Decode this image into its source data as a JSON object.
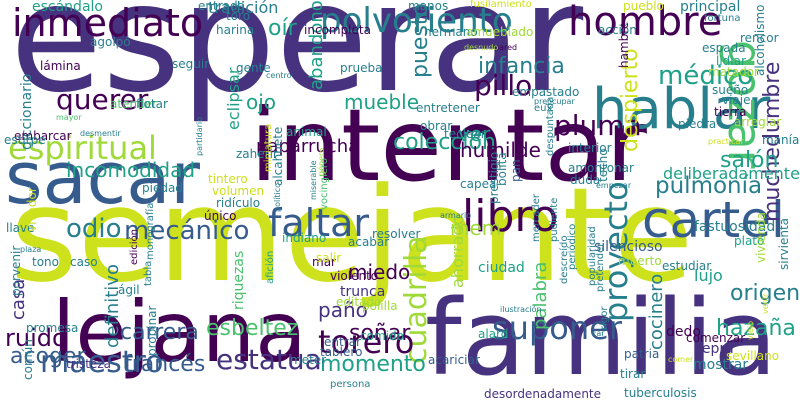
{
  "palette": {
    "background": "#ffffff",
    "deep_purple": "#440154",
    "indigo": "#46327e",
    "blue": "#365c8d",
    "teal": "#277f8e",
    "green_teal": "#1fa187",
    "green": "#4ac16d",
    "lime": "#a0da39",
    "yellow": "#cde11d"
  },
  "words": [
    {
      "id": "esperar",
      "text": "esperar",
      "color": "#46327e"
    },
    {
      "id": "intentar",
      "text": "intentar",
      "color": "#440154"
    },
    {
      "id": "semejante",
      "text": "semejante",
      "color": "#cde11d"
    },
    {
      "id": "familia",
      "text": "familia",
      "color": "#46327e"
    },
    {
      "id": "lejana",
      "text": "lejana",
      "color": "#440154"
    },
    {
      "id": "sacar",
      "text": "sacar",
      "color": "#365c8d"
    },
    {
      "id": "inmediato",
      "text": "inmediato",
      "color": "#440154"
    },
    {
      "id": "polvoriento",
      "text": "polvoriento",
      "color": "#277f8e"
    },
    {
      "id": "hombre",
      "text": "hombre",
      "color": "#440154"
    },
    {
      "id": "hablar",
      "text": "hablar",
      "color": "#277f8e"
    },
    {
      "id": "gozar",
      "text": "gozar",
      "color": "#4ac16d"
    },
    {
      "id": "espiritual",
      "text": "espiritual",
      "color": "#a0da39"
    },
    {
      "id": "faltar",
      "text": "faltar",
      "color": "#365c8d"
    },
    {
      "id": "libro",
      "text": "libro",
      "color": "#440154"
    },
    {
      "id": "cartel",
      "text": "cartel",
      "color": "#365c8d"
    },
    {
      "id": "cuadrilla",
      "text": "cuadrilla",
      "color": "#a0da39"
    },
    {
      "id": "proyecto",
      "text": "proyecto",
      "color": "#277f8e"
    },
    {
      "id": "suponer",
      "text": "suponer",
      "color": "#365c8d"
    },
    {
      "id": "torero",
      "text": "torero",
      "color": "#440154"
    },
    {
      "id": "maestro",
      "text": "maestro",
      "color": "#365c8d"
    },
    {
      "id": "estatua",
      "text": "estatua",
      "color": "#46327e"
    },
    {
      "id": "pulmonia",
      "text": "pulmonía",
      "color": "#277f8e"
    },
    {
      "id": "muchedumbre",
      "text": "muchedumbre",
      "color": "#46327e"
    },
    {
      "id": "medico",
      "text": "médico",
      "color": "#1fa187"
    },
    {
      "id": "pluma",
      "text": "pluma",
      "color": "#440154"
    },
    {
      "id": "querer",
      "text": "querer",
      "color": "#440154"
    },
    {
      "id": "coleccion",
      "text": "colección",
      "color": "#1fa187"
    },
    {
      "id": "mecanico",
      "text": "mecánico",
      "color": "#365c8d"
    },
    {
      "id": "odio",
      "text": "odio",
      "color": "#277f8e"
    },
    {
      "id": "despierto",
      "text": "despierto",
      "color": "#cde11d"
    },
    {
      "id": "infancia",
      "text": "infancia",
      "color": "#277f8e"
    },
    {
      "id": "pillo",
      "text": "pillo",
      "color": "#440154"
    },
    {
      "id": "salon",
      "text": "salón",
      "color": "#1fa187"
    },
    {
      "id": "momento",
      "text": "momento",
      "color": "#1fa187"
    },
    {
      "id": "esbeltez",
      "text": "esbeltez",
      "color": "#4ac16d"
    },
    {
      "id": "ruido",
      "text": "ruido",
      "color": "#440154"
    },
    {
      "id": "acoger",
      "text": "acoger",
      "color": "#365c8d"
    },
    {
      "id": "carrera",
      "text": "carrera",
      "color": "#365c8d"
    },
    {
      "id": "frances",
      "text": "francés",
      "color": "#365c8d"
    },
    {
      "id": "hazana",
      "text": "hazaña",
      "color": "#1fa187"
    },
    {
      "id": "origen",
      "text": "origen",
      "color": "#277f8e"
    },
    {
      "id": "incomodidad",
      "text": "incomodidad",
      "color": "#1fa187"
    },
    {
      "id": "sonar",
      "text": "soñar",
      "color": "#440154"
    },
    {
      "id": "pano",
      "text": "paño",
      "color": "#46327e"
    },
    {
      "id": "miedo",
      "text": "miedo",
      "color": "#440154"
    },
    {
      "id": "humilde",
      "text": "humilde",
      "color": "#440154"
    },
    {
      "id": "mueble",
      "text": "mueble",
      "color": "#1fa187"
    },
    {
      "id": "oir",
      "text": "oír",
      "color": "#1fa187"
    },
    {
      "id": "ojo",
      "text": "ojo",
      "color": "#1fa187"
    },
    {
      "id": "abandono",
      "text": "abandono",
      "color": "#1fa187"
    },
    {
      "id": "puesto",
      "text": "puesto",
      "color": "#277f8e"
    },
    {
      "id": "ver",
      "text": "ver",
      "color": "#1fa187"
    },
    {
      "id": "mem",
      "text": "mem",
      "color": "#a0da39"
    },
    {
      "id": "escandalo",
      "text": "escándalo",
      "color": "#1fa187"
    },
    {
      "id": "diccionario",
      "text": "diccionario",
      "color": "#277f8e"
    },
    {
      "id": "paparrucha",
      "text": "paparrucha",
      "color": "#440154"
    },
    {
      "id": "cocinero",
      "text": "cocinero",
      "color": "#277f8e"
    },
    {
      "id": "definitivo",
      "text": "definitivo",
      "color": "#277f8e"
    },
    {
      "id": "casa",
      "text": "casa",
      "color": "#46327e"
    },
    {
      "id": "palabra",
      "text": "palabra",
      "color": "#4ac16d"
    },
    {
      "id": "deliberadamente",
      "text": "deliberadamente",
      "color": "#1fa187"
    },
    {
      "id": "tradicion",
      "text": "tradición",
      "color": "#277f8e"
    },
    {
      "id": "eclipsar",
      "text": "eclipsar",
      "color": "#1fa187"
    },
    {
      "id": "ahorrado",
      "text": "ahorrado",
      "color": "#a0da39"
    },
    {
      "id": "lujo",
      "text": "lujo",
      "color": "#1fa187"
    },
    {
      "id": "silencioso",
      "text": "silencioso",
      "color": "#365c8d"
    },
    {
      "id": "fastuosidad",
      "text": "fastuosidad",
      "color": "#277f8e"
    },
    {
      "id": "ciudad",
      "text": "ciudad",
      "color": "#1fa187"
    },
    {
      "id": "lepra",
      "text": "lepra",
      "color": "#46327e"
    },
    {
      "id": "mostrar",
      "text": "mostrar",
      "color": "#277f8e"
    },
    {
      "id": "tirar",
      "text": "tirar",
      "color": "#277f8e"
    },
    {
      "id": "dedo",
      "text": "dedo",
      "color": "#440154"
    },
    {
      "id": "trunca",
      "text": "trunca",
      "color": "#46327e"
    },
    {
      "id": "comido",
      "text": "comido",
      "color": "#1fa187"
    },
    {
      "id": "riquezas",
      "text": "riquezas",
      "color": "#4ac16d"
    },
    {
      "id": "editado",
      "text": "editado",
      "color": "#a0da39"
    },
    {
      "id": "polilla",
      "text": "polilla",
      "color": "#a0da39"
    },
    {
      "id": "plato",
      "text": "plato",
      "color": "#1fa187"
    },
    {
      "id": "estudiar",
      "text": "estudiar",
      "color": "#277f8e"
    },
    {
      "id": "muerto",
      "text": "muerto",
      "color": "#a0da39"
    },
    {
      "id": "vivienda",
      "text": "vivienda",
      "color": "#a0da39"
    },
    {
      "id": "sirvienta",
      "text": "sirvienta",
      "color": "#277f8e"
    },
    {
      "id": "sevillano",
      "text": "sevillano",
      "color": "#cde11d"
    },
    {
      "id": "comenzar",
      "text": "comenzar",
      "color": "#440154"
    },
    {
      "id": "patria",
      "text": "patria",
      "color": "#365c8d"
    },
    {
      "id": "tuberculosis",
      "text": "tuberculosis",
      "color": "#277f8e"
    },
    {
      "id": "desordenadamente",
      "text": "desordenadamente",
      "color": "#46327e"
    },
    {
      "id": "acariciar",
      "text": "acariciar",
      "color": "#365c8d"
    },
    {
      "id": "tristeza",
      "text": "tristeza",
      "color": "#46327e"
    },
    {
      "id": "propinar",
      "text": "propinar",
      "color": "#277f8e"
    },
    {
      "id": "persona",
      "text": "persona",
      "color": "#277f8e"
    },
    {
      "id": "meter",
      "text": "meter",
      "color": "#277f8e"
    },
    {
      "id": "tablero",
      "text": "tablero",
      "color": "#365c8d"
    },
    {
      "id": "entrar",
      "text": "entrar",
      "color": "#365c8d"
    },
    {
      "id": "alard",
      "text": "alard",
      "color": "#1fa187"
    },
    {
      "id": "agil",
      "text": "ágil",
      "color": "#277f8e"
    },
    {
      "id": "promesa",
      "text": "promesa",
      "color": "#277f8e"
    },
    {
      "id": "comun",
      "text": "común",
      "color": "#277f8e"
    },
    {
      "id": "porvenir",
      "text": "porvenir",
      "color": "#277f8e"
    },
    {
      "id": "tono",
      "text": "tono",
      "color": "#277f8e"
    },
    {
      "id": "caso",
      "text": "caso",
      "color": "#277f8e"
    },
    {
      "id": "mar",
      "text": "mar",
      "color": "#440154"
    },
    {
      "id": "salir",
      "text": "salir",
      "color": "#cde11d"
    },
    {
      "id": "violento",
      "text": "violento",
      "color": "#440154"
    },
    {
      "id": "indiano",
      "text": "indiano",
      "color": "#1fa187"
    },
    {
      "id": "acabar",
      "text": "acabar",
      "color": "#277f8e"
    },
    {
      "id": "resolver",
      "text": "resolver",
      "color": "#277f8e"
    },
    {
      "id": "piedad",
      "text": "piedad",
      "color": "#277f8e"
    },
    {
      "id": "volumen",
      "text": "volumen",
      "color": "#cde11d"
    },
    {
      "id": "ridiculo",
      "text": "ridículo",
      "color": "#277f8e"
    },
    {
      "id": "unico",
      "text": "único",
      "color": "#440154"
    },
    {
      "id": "tintero",
      "text": "tintero",
      "color": "#cde11d"
    },
    {
      "id": "alcahuete",
      "text": "alcahuete",
      "color": "#277f8e"
    },
    {
      "id": "zaherir",
      "text": "zaherir",
      "color": "#277f8e"
    },
    {
      "id": "animal",
      "text": "animal",
      "color": "#1fa187"
    },
    {
      "id": "obrar",
      "text": "obrar",
      "color": "#277f8e"
    },
    {
      "id": "entretener",
      "text": "entretener",
      "color": "#277f8e"
    },
    {
      "id": "teclear",
      "text": "teclear",
      "color": "#277f8e"
    },
    {
      "id": "interior",
      "text": "interior",
      "color": "#277f8e"
    },
    {
      "id": "amontonar",
      "text": "amontonar",
      "color": "#277f8e"
    },
    {
      "id": "duda",
      "text": "duda",
      "color": "#277f8e"
    },
    {
      "id": "capea",
      "text": "capea",
      "color": "#277f8e"
    },
    {
      "id": "prestigio",
      "text": "prestigio",
      "color": "#277f8e"
    },
    {
      "id": "pan",
      "text": "pan",
      "color": "#365c8d"
    },
    {
      "id": "bolita",
      "text": "bolita",
      "color": "#277f8e"
    },
    {
      "id": "techo",
      "text": "techo",
      "color": "#277f8e"
    },
    {
      "id": "tierra",
      "text": "tierra",
      "color": "#440154"
    },
    {
      "id": "piedra",
      "text": "piedra",
      "color": "#277f8e"
    },
    {
      "id": "arreglar",
      "text": "arreglar",
      "color": "#a0da39"
    },
    {
      "id": "mania",
      "text": "manía",
      "color": "#277f8e"
    },
    {
      "id": "viaje",
      "text": "viaje",
      "color": "#277f8e"
    },
    {
      "id": "sueno",
      "text": "sueño",
      "color": "#277f8e"
    },
    {
      "id": "lidiar",
      "text": "lidiar",
      "color": "#1fa187"
    },
    {
      "id": "matador",
      "text": "matador",
      "color": "#a0da39"
    },
    {
      "id": "alcoholismo",
      "text": "alcoholismo",
      "color": "#277f8e"
    },
    {
      "id": "espada",
      "text": "espada",
      "color": "#277f8e"
    },
    {
      "id": "rencor",
      "text": "rencor",
      "color": "#277f8e"
    },
    {
      "id": "principal",
      "text": "principal",
      "color": "#277f8e"
    },
    {
      "id": "pueblo",
      "text": "pueblo",
      "color": "#cde11d"
    },
    {
      "id": "fortuna",
      "text": "fortuna",
      "color": "#277f8e"
    },
    {
      "id": "entrada",
      "text": "entrada",
      "color": "#277f8e"
    },
    {
      "id": "toro",
      "text": "toro",
      "color": "#277f8e"
    },
    {
      "id": "manos",
      "text": "manos",
      "color": "#277f8e"
    },
    {
      "id": "fusilamiento",
      "text": "fusilamiento",
      "color": "#cde11d"
    },
    {
      "id": "incompleta",
      "text": "incompleta",
      "color": "#440154"
    },
    {
      "id": "hermano",
      "text": "hermano",
      "color": "#277f8e"
    },
    {
      "id": "amueblado",
      "text": "amueblado",
      "color": "#a0da39"
    },
    {
      "id": "accion",
      "text": "acción",
      "color": "#277f8e"
    },
    {
      "id": "hambre",
      "text": "hambre",
      "color": "#440154"
    },
    {
      "id": "empastado",
      "text": "empastado",
      "color": "#277f8e"
    },
    {
      "id": "seguir",
      "text": "seguir",
      "color": "#277f8e"
    },
    {
      "id": "prueba",
      "text": "prueba",
      "color": "#277f8e"
    },
    {
      "id": "gente",
      "text": "gente",
      "color": "#277f8e"
    },
    {
      "id": "harina",
      "text": "harina",
      "color": "#277f8e"
    },
    {
      "id": "agolpo",
      "text": "agolpó",
      "color": "#277f8e"
    },
    {
      "id": "lamina",
      "text": "lámina",
      "color": "#440154"
    },
    {
      "id": "atender",
      "text": "atender",
      "color": "#4ac16d"
    },
    {
      "id": "flotar",
      "text": "flotar",
      "color": "#277f8e"
    },
    {
      "id": "embarcar",
      "text": "embarcar",
      "color": "#440154"
    },
    {
      "id": "estirpe",
      "text": "estirpe",
      "color": "#277f8e"
    },
    {
      "id": "llave",
      "text": "llave",
      "color": "#277f8e"
    },
    {
      "id": "vivador",
      "text": "vivador",
      "color": "#cde11d"
    },
    {
      "id": "mercader",
      "text": "mercader",
      "color": "#277f8e"
    },
    {
      "id": "pudiente",
      "text": "pudiente",
      "color": "#277f8e"
    },
    {
      "id": "descreido",
      "text": "descreído",
      "color": "#277f8e"
    },
    {
      "id": "periodico",
      "text": "periódico",
      "color": "#277f8e"
    },
    {
      "id": "popularidad",
      "text": "popularidad",
      "color": "#277f8e"
    },
    {
      "id": "pretender",
      "text": "pretender",
      "color": "#277f8e"
    },
    {
      "id": "rigor",
      "text": "rigor",
      "color": "#277f8e"
    },
    {
      "id": "vocinglero",
      "text": "vocinglero",
      "color": "#4ac16d"
    },
    {
      "id": "miniatura",
      "text": "miniatura",
      "color": "#cde11d"
    },
    {
      "id": "aficion",
      "text": "afición",
      "color": "#1fa187"
    },
    {
      "id": "monografia",
      "text": "monografía",
      "color": "#277f8e"
    },
    {
      "id": "edicion",
      "text": "edición",
      "color": "#440154"
    },
    {
      "id": "tabla",
      "text": "tabla",
      "color": "#277f8e"
    },
    {
      "id": "mayor",
      "text": "mayor",
      "color": "#4ac16d"
    },
    {
      "id": "eux",
      "text": "eux",
      "color": "#277f8e"
    },
    {
      "id": "desmentir",
      "text": "desmentir",
      "color": "#277f8e"
    },
    {
      "id": "preocupar",
      "text": "preocupar",
      "color": "#277f8e"
    },
    {
      "id": "despuntada",
      "text": "despuntada",
      "color": "#277f8e"
    },
    {
      "id": "practicar",
      "text": "practicar",
      "color": "#cde11d"
    },
    {
      "id": "venir",
      "text": "venir",
      "color": "#cde11d"
    },
    {
      "id": "viejo",
      "text": "viejo",
      "color": "#cde11d"
    },
    {
      "id": "comer",
      "text": "comer",
      "color": "#cde11d"
    },
    {
      "id": "partidario",
      "text": "partidario",
      "color": "#277f8e"
    },
    {
      "id": "centro",
      "text": "centro",
      "color": "#277f8e"
    },
    {
      "id": "pared",
      "text": "pared",
      "color": "#440154"
    },
    {
      "id": "desnudo",
      "text": "desnudo",
      "color": "#a0da39"
    },
    {
      "id": "plaza",
      "text": "plaza",
      "color": "#277f8e"
    },
    {
      "id": "ilustracion",
      "text": "ilustración",
      "color": "#277f8e"
    },
    {
      "id": "armario",
      "text": "armario",
      "color": "#277f8e"
    },
    {
      "id": "empezar",
      "text": "empezar",
      "color": "#277f8e"
    },
    {
      "id": "politico",
      "text": "político",
      "color": "#277f8e"
    },
    {
      "id": "miserable",
      "text": "miserable",
      "color": "#277f8e"
    },
    {
      "id": "genero",
      "text": "género",
      "color": "#a0da39"
    },
    {
      "id": "car",
      "text": "car",
      "color": "#277f8e"
    }
  ]
}
